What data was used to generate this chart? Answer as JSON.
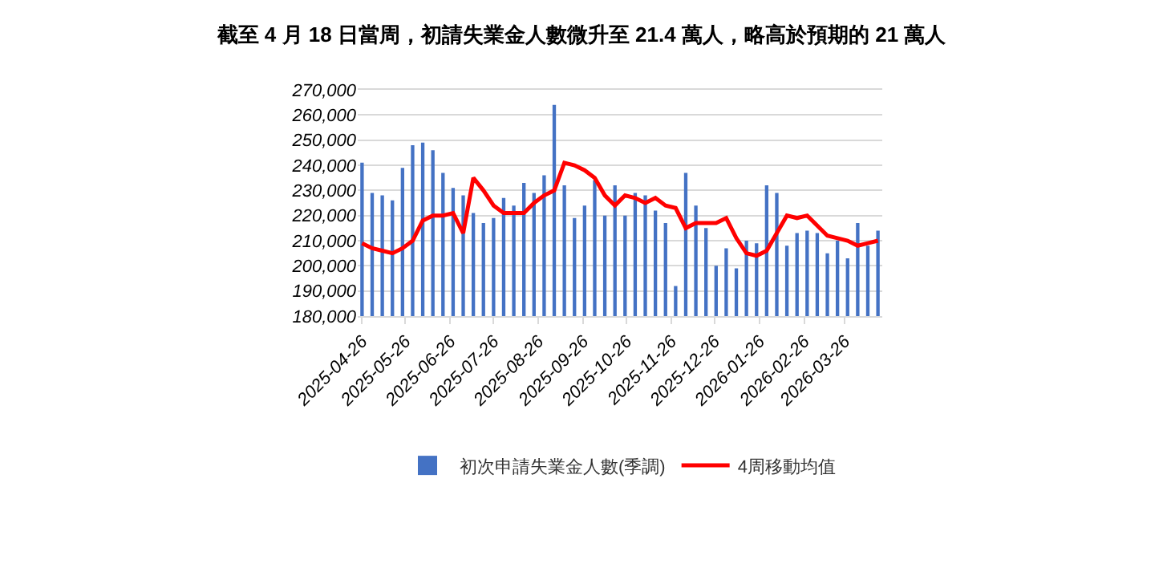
{
  "chart_data": {
    "type": "bar",
    "title": "截至 4 月 18 日當周，初請失業金人數微升至 21.4 萬人，略高於預期的 21 萬人",
    "x": [
      "2025-04-26",
      "2025-05-03",
      "2025-05-10",
      "2025-05-17",
      "2025-05-24",
      "2025-05-31",
      "2025-06-07",
      "2025-06-14",
      "2025-06-21",
      "2025-06-28",
      "2025-07-05",
      "2025-07-12",
      "2025-07-19",
      "2025-07-26",
      "2025-08-02",
      "2025-08-09",
      "2025-08-16",
      "2025-08-23",
      "2025-08-30",
      "2025-09-06",
      "2025-09-13",
      "2025-09-20",
      "2025-09-27",
      "2025-10-04",
      "2025-10-11",
      "2025-10-18",
      "2025-10-25",
      "2025-11-01",
      "2025-11-08",
      "2025-11-15",
      "2025-11-22",
      "2025-11-29",
      "2025-12-06",
      "2025-12-13",
      "2025-12-20",
      "2025-12-27",
      "2026-01-03",
      "2026-01-10",
      "2026-01-17",
      "2026-01-24",
      "2026-01-31",
      "2026-02-07",
      "2026-02-14",
      "2026-02-21",
      "2026-02-28",
      "2026-03-07",
      "2026-03-14",
      "2026-03-21",
      "2026-03-28",
      "2026-04-04",
      "2026-04-11",
      "2026-04-18"
    ],
    "series": [
      {
        "name": "初次申請失業金人數(季調)",
        "color": "#4472c4",
        "values": [
          241000,
          229000,
          228000,
          226000,
          239000,
          248000,
          249000,
          246000,
          237000,
          231000,
          228000,
          221000,
          217000,
          219000,
          227000,
          224000,
          233000,
          229000,
          236000,
          264000,
          232000,
          219000,
          224000,
          234000,
          220000,
          232000,
          220000,
          229000,
          228000,
          222000,
          217000,
          192000,
          237000,
          224000,
          215000,
          200000,
          207000,
          199000,
          210000,
          209000,
          232000,
          229000,
          208000,
          213000,
          214000,
          213000,
          205000,
          210000,
          203000,
          217000,
          208000,
          214000
        ]
      },
      {
        "name": "4周移動均值",
        "type": "line",
        "color": "#ff0000",
        "values": [
          209000,
          207000,
          206000,
          205000,
          207000,
          210000,
          218000,
          220000,
          220000,
          221000,
          213000,
          235000,
          230000,
          224000,
          221000,
          221000,
          221000,
          225000,
          228000,
          230000,
          241000,
          240000,
          238000,
          235000,
          228000,
          224000,
          228000,
          227000,
          225000,
          227000,
          224000,
          223000,
          215000,
          217000,
          217000,
          217000,
          219000,
          211000,
          205000,
          204000,
          206000,
          213000,
          220000,
          219000,
          220000,
          216000,
          212000,
          211000,
          210000,
          208000,
          209000,
          210000
        ]
      }
    ],
    "xlim": [
      "2025-04-23",
      "2026-04-21"
    ],
    "xticks": [
      "2025-04-26",
      "2025-05-26",
      "2025-06-26",
      "2025-07-26",
      "2025-08-26",
      "2025-09-26",
      "2025-10-26",
      "2025-11-26",
      "2025-12-26",
      "2026-01-26",
      "2026-02-26",
      "2026-03-26"
    ],
    "ylim": [
      180000,
      270000
    ],
    "yticks": [
      {
        "value": 180000,
        "label": "180,000"
      },
      {
        "value": 190000,
        "label": "190,000"
      },
      {
        "value": 200000,
        "label": "200,000"
      },
      {
        "value": 210000,
        "label": "210,000"
      },
      {
        "value": 220000,
        "label": "220,000"
      },
      {
        "value": 230000,
        "label": "230,000"
      },
      {
        "value": 240000,
        "label": "240,000"
      },
      {
        "value": 250000,
        "label": "250,000"
      },
      {
        "value": 260000,
        "label": "260,000"
      },
      {
        "value": 270000,
        "label": "270,000"
      }
    ],
    "grid": "y",
    "legend": "bottom"
  }
}
